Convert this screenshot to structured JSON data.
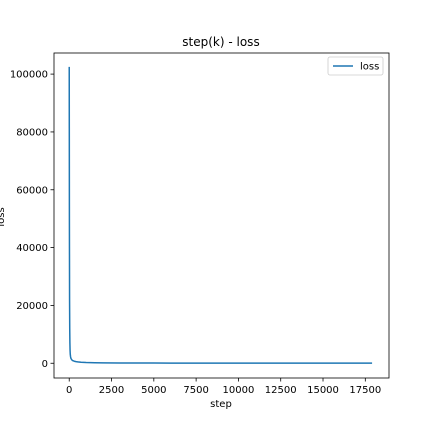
{
  "chart_data": {
    "type": "line",
    "title": "step(k) - loss",
    "xlabel": "step",
    "ylabel": "loss",
    "xlim": [
      -900,
      18900
    ],
    "ylim": [
      -5100,
      107300
    ],
    "xticks": [
      0,
      2500,
      5000,
      7500,
      10000,
      12500,
      15000,
      17500
    ],
    "yticks": [
      0,
      20000,
      40000,
      60000,
      80000,
      100000
    ],
    "grid": false,
    "legend_position": "upper right",
    "series": [
      {
        "name": "loss",
        "color": "#1f77b4",
        "x": [
          0,
          10,
          20,
          30,
          40,
          50,
          60,
          80,
          100,
          150,
          200,
          300,
          400,
          500,
          700,
          1000,
          1500,
          2000,
          3000,
          4000,
          5000,
          6000,
          8000,
          10000,
          12000,
          14000,
          16000,
          17900
        ],
        "y": [
          102500,
          50000,
          22000,
          12000,
          7000,
          4500,
          3200,
          2200,
          1700,
          1200,
          950,
          700,
          560,
          470,
          350,
          260,
          190,
          150,
          110,
          90,
          75,
          65,
          55,
          48,
          44,
          40,
          37,
          35
        ]
      }
    ]
  }
}
